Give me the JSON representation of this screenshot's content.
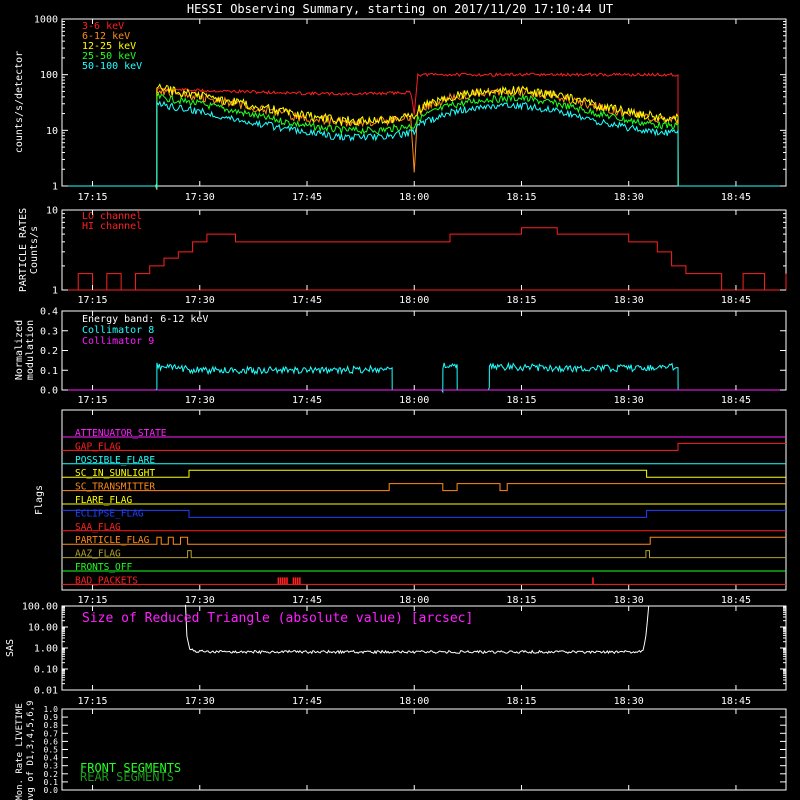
{
  "title": "HESSI Observing Summary, starting on 2017/11/20 17:10:44 UT",
  "time_ticks": [
    "17:15",
    "17:30",
    "17:45",
    "18:00",
    "18:15",
    "18:30",
    "18:45"
  ],
  "time_tick_minutes": [
    15,
    30,
    45,
    60,
    75,
    90,
    105
  ],
  "time_range_minutes": [
    10.73,
    112
  ],
  "colors": {
    "background": "#000000",
    "axis": "#ffffff",
    "red": "#ff2020",
    "orange": "#ff8c1a",
    "yellow": "#ffff00",
    "green": "#20ff20",
    "cyan": "#20ffff",
    "magenta": "#ff20ff",
    "blue": "#2040ff",
    "olive": "#b3a030",
    "darkgreen": "#1a9a1a"
  },
  "chart_data": [
    {
      "id": "counts",
      "type": "line",
      "ylabel": "counts/s/detector",
      "yscale": "log",
      "ylim": [
        1,
        1000
      ],
      "yticks": [
        "1",
        "10",
        "100",
        "1000"
      ],
      "legend_position": "top-left",
      "x": [
        10.73,
        24.0,
        24.01,
        25,
        30,
        35,
        40,
        45,
        50,
        55,
        59.5,
        60,
        60.5,
        62,
        65,
        70,
        75,
        80,
        85,
        90,
        95,
        96.9,
        96.91,
        112
      ],
      "series": [
        {
          "name": "3-6 keV",
          "color": "red",
          "values": [
            1,
            1,
            55,
            55,
            52,
            50,
            48,
            46,
            45,
            46,
            48,
            20,
            100,
            100,
            100,
            100,
            100,
            100,
            100,
            100,
            100,
            100,
            1,
            1
          ]
        },
        {
          "name": "6-12 keV",
          "color": "orange",
          "values": [
            1,
            1,
            55,
            50,
            40,
            30,
            22,
            16,
            14,
            14,
            17,
            2,
            22,
            28,
            38,
            48,
            50,
            40,
            28,
            20,
            16,
            16,
            1,
            1
          ]
        },
        {
          "name": "12-25 keV",
          "color": "yellow",
          "values": [
            1,
            1,
            60,
            55,
            42,
            32,
            24,
            18,
            15,
            15,
            18,
            18,
            24,
            30,
            40,
            50,
            52,
            42,
            30,
            21,
            17,
            17,
            1,
            1
          ]
        },
        {
          "name": "25-50 keV",
          "color": "green",
          "values": [
            1,
            1,
            40,
            38,
            30,
            22,
            16,
            12,
            10,
            10,
            12,
            12,
            16,
            20,
            28,
            36,
            38,
            30,
            21,
            15,
            12,
            12,
            1,
            1
          ]
        },
        {
          "name": "50-100 keV",
          "color": "cyan",
          "values": [
            1,
            1,
            30,
            28,
            22,
            16,
            12,
            9,
            7.5,
            7.5,
            9,
            9,
            12,
            15,
            21,
            27,
            28,
            22,
            15,
            11,
            9,
            9,
            1,
            1
          ]
        }
      ]
    },
    {
      "id": "particle",
      "type": "line",
      "ylabel": [
        "PARTICLE RATES",
        "Counts/s"
      ],
      "yscale": "log",
      "ylim": [
        1,
        10
      ],
      "yticks": [
        "1",
        "10"
      ],
      "legend_position": "top-left",
      "x": [
        10.73,
        13,
        15,
        17,
        19,
        21,
        23,
        25,
        27,
        29,
        31,
        35,
        40,
        45,
        50,
        55,
        60,
        65,
        70,
        75,
        80,
        85,
        90,
        92,
        94,
        96,
        98,
        100,
        103,
        106,
        109,
        112
      ],
      "series": [
        {
          "name": "LO channel",
          "color": "red",
          "values": [
            1,
            1.6,
            1,
            1.6,
            1,
            1.6,
            2,
            2.5,
            3,
            4,
            5,
            4,
            4,
            4,
            4,
            4,
            4,
            5,
            5,
            6,
            5,
            5,
            4,
            4,
            3,
            2,
            1.6,
            1.6,
            1,
            1.6,
            1,
            1.6
          ]
        },
        {
          "name": "HI channel",
          "color": "red",
          "values": [
            1,
            1,
            1,
            1,
            1,
            1,
            1,
            1,
            1,
            1,
            1,
            1,
            1,
            1,
            1,
            1,
            1,
            1,
            1,
            1,
            1,
            1,
            1,
            1,
            1,
            1,
            1,
            1,
            1,
            1,
            1,
            1
          ]
        }
      ]
    },
    {
      "id": "modulation",
      "type": "line",
      "ylabel": [
        "Normalized",
        "modulation"
      ],
      "yscale": "linear",
      "ylim": [
        0,
        0.4
      ],
      "yticks": [
        "0.0",
        "0.1",
        "0.2",
        "0.3",
        "0.4"
      ],
      "legend_title": "Energy band: 6-12 keV",
      "legend_position": "top-left",
      "x": [
        10.73,
        24.0,
        24.01,
        30,
        40,
        50,
        56.9,
        56.91,
        64.0,
        64.01,
        66.0,
        66.01,
        70.5,
        70.51,
        80,
        90,
        96.9,
        96.91,
        112
      ],
      "series": [
        {
          "name": "Collimator 8",
          "color": "cyan",
          "values": [
            0,
            0,
            0.12,
            0.1,
            0.1,
            0.1,
            0.11,
            0,
            0,
            0.12,
            0.12,
            0,
            0,
            0.12,
            0.11,
            0.11,
            0.12,
            0,
            0
          ]
        },
        {
          "name": "Collimator 9",
          "color": "magenta",
          "values": [
            0,
            0,
            0,
            0,
            0,
            0,
            0,
            0,
            0,
            0,
            0,
            0,
            0,
            0,
            0,
            0,
            0,
            0,
            0
          ]
        }
      ]
    },
    {
      "id": "flags",
      "type": "line",
      "ylabel": "Flags",
      "series": [
        {
          "name": "ATTENUATOR_STATE",
          "color": "magenta",
          "x": [
            10.73,
            112
          ],
          "values": [
            0,
            0
          ]
        },
        {
          "name": "GAP_FLAG",
          "color": "red",
          "x": [
            10.73,
            96.9,
            96.9,
            112
          ],
          "values": [
            0,
            0,
            1,
            1
          ]
        },
        {
          "name": "POSSIBLE_FLARE",
          "color": "cyan",
          "x": [
            10.73,
            112
          ],
          "values": [
            0,
            0
          ]
        },
        {
          "name": "SC_IN_SUNLIGHT",
          "color": "yellow",
          "x": [
            10.73,
            28.5,
            28.5,
            92.5,
            92.5,
            112
          ],
          "values": [
            0,
            0,
            1,
            1,
            0,
            0
          ]
        },
        {
          "name": "SC_TRANSMITTER",
          "color": "orange",
          "x": [
            10.73,
            56.5,
            56.5,
            64.0,
            64.0,
            66.0,
            66.0,
            72.0,
            72.0,
            73.0,
            73.0,
            112
          ],
          "values": [
            0,
            0,
            1,
            1,
            0,
            0,
            1,
            1,
            0,
            0,
            1,
            1
          ]
        },
        {
          "name": "FLARE_FLAG",
          "color": "yellow",
          "x": [
            10.73,
            112
          ],
          "values": [
            0,
            0
          ]
        },
        {
          "name": "ECLIPSE_FLAG",
          "color": "blue",
          "x": [
            10.73,
            28.5,
            28.5,
            92.5,
            92.5,
            112
          ],
          "values": [
            1,
            1,
            0,
            0,
            1,
            1
          ]
        },
        {
          "name": "SAA_FLAG",
          "color": "red",
          "x": [
            10.73,
            112
          ],
          "values": [
            0,
            0
          ]
        },
        {
          "name": "PARTICLE_FLAG",
          "color": "orange",
          "x": [
            10.73,
            24.0,
            24.0,
            24.6,
            24.6,
            25.6,
            25.6,
            26.3,
            26.3,
            27.3,
            27.3,
            28.3,
            28.3,
            93.0,
            93.0,
            112
          ],
          "values": [
            0,
            0,
            1,
            1,
            0,
            0,
            1,
            1,
            0,
            0,
            1,
            1,
            0,
            0,
            1,
            1
          ]
        },
        {
          "name": "AAZ_FLAG",
          "color": "olive",
          "x": [
            10.73,
            28.3,
            28.3,
            28.8,
            28.8,
            92.4,
            92.4,
            92.9,
            92.9,
            112
          ],
          "values": [
            0,
            0,
            1,
            1,
            0,
            0,
            1,
            1,
            0,
            0
          ]
        },
        {
          "name": "FRONTS_OFF",
          "color": "green",
          "x": [
            10.73,
            112
          ],
          "values": [
            0,
            0
          ]
        },
        {
          "name": "BAD_PACKETS",
          "color": "red",
          "x": [
            10.73,
            112
          ],
          "values": [
            0,
            0
          ],
          "spikes": [
            41.0,
            41.3,
            41.6,
            41.9,
            42.2,
            43.1,
            43.4,
            43.7,
            44.0,
            85.0
          ]
        }
      ]
    },
    {
      "id": "sas",
      "type": "line",
      "ylabel": "SAS",
      "yscale": "log",
      "ylim": [
        0.01,
        100
      ],
      "yticks": [
        "0.01",
        "0.10",
        "1.00",
        "10.00",
        "100.00"
      ],
      "legend_position": "top-left",
      "x": [
        28.0,
        28.2,
        28.6,
        29.5,
        32,
        40,
        50,
        60,
        70,
        80,
        90,
        92.0,
        92.4,
        92.8
      ],
      "series": [
        {
          "name": "Size of Reduced Triangle (absolute value) [arcsec]",
          "color": "white",
          "values": [
            100,
            4,
            0.9,
            0.7,
            0.65,
            0.65,
            0.65,
            0.65,
            0.65,
            0.65,
            0.65,
            0.7,
            4,
            100
          ]
        }
      ]
    },
    {
      "id": "livetime",
      "type": "line",
      "ylabel": [
        "Mon. Rate LIVETIME",
        "avg of D1,3,4,5,6,9"
      ],
      "yscale": "linear",
      "ylim": [
        0,
        1
      ],
      "yticks": [
        "0.0",
        "0.1",
        "0.2",
        "0.3",
        "0.4",
        "0.5",
        "0.6",
        "0.7",
        "0.8",
        "0.9",
        "1.0"
      ],
      "legend_position": "bottom-left",
      "series": [
        {
          "name": "FRONT SEGMENTS",
          "color": "green",
          "x": [],
          "values": []
        },
        {
          "name": "REAR SEGMENTS",
          "color": "darkgreen",
          "x": [],
          "values": []
        }
      ]
    }
  ]
}
